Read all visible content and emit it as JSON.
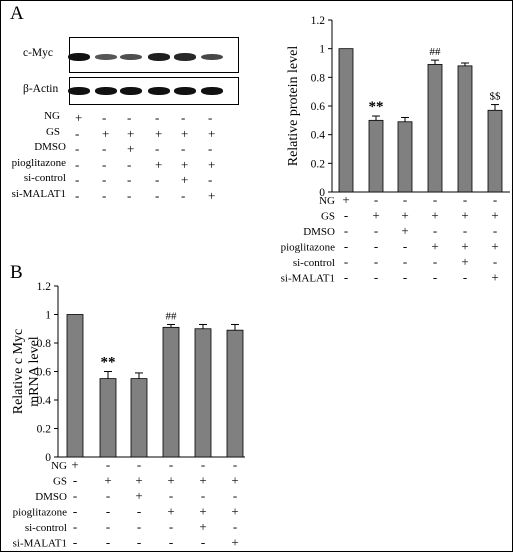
{
  "panels": {
    "A": {
      "letter": "A",
      "blot": {
        "rows": [
          {
            "label": "c-Myc",
            "band_intensity": [
              1.0,
              0.55,
              0.6,
              0.9,
              0.85,
              0.65
            ]
          },
          {
            "label": "β-Actin",
            "band_intensity": [
              1.0,
              1.0,
              1.0,
              1.0,
              1.0,
              1.0
            ]
          }
        ]
      },
      "conditions": [
        {
          "label": "NG",
          "values": [
            "+",
            "-",
            "-",
            "-",
            "-",
            "-"
          ]
        },
        {
          "label": "GS",
          "values": [
            "-",
            "+",
            "+",
            "+",
            "+",
            "+"
          ]
        },
        {
          "label": "DMSO",
          "values": [
            "-",
            "-",
            "+",
            "-",
            "-",
            "-"
          ]
        },
        {
          "label": "pioglitazone",
          "values": [
            "-",
            "-",
            "-",
            "+",
            "+",
            "+"
          ]
        },
        {
          "label": "si-control",
          "values": [
            "-",
            "-",
            "-",
            "-",
            "+",
            "-"
          ]
        },
        {
          "label": "si-MALAT1",
          "values": [
            "-",
            "-",
            "-",
            "-",
            "-",
            "+"
          ]
        }
      ]
    },
    "B": {
      "letter": "B"
    }
  },
  "chart_data": [
    {
      "type": "bar",
      "panel": "A",
      "categories": [
        "1",
        "2",
        "3",
        "4",
        "5",
        "6"
      ],
      "values": [
        1.0,
        0.5,
        0.49,
        0.89,
        0.88,
        0.57
      ],
      "errors": [
        0,
        0.03,
        0.03,
        0.03,
        0.02,
        0.04
      ],
      "annotations": [
        "",
        "**",
        "",
        "##",
        "",
        "$$"
      ],
      "ylabel": "Relative protein level",
      "xlabel": "",
      "ylim": [
        0,
        1.2
      ],
      "yticks": [
        0,
        0.2,
        0.4,
        0.6,
        0.8,
        1,
        1.2
      ],
      "bar_color": "#808080",
      "conditions": [
        {
          "label": "NG",
          "values": [
            "+",
            "-",
            "-",
            "-",
            "-",
            "-"
          ]
        },
        {
          "label": "GS",
          "values": [
            "-",
            "+",
            "+",
            "+",
            "+",
            "+"
          ]
        },
        {
          "label": "DMSO",
          "values": [
            "-",
            "-",
            "+",
            "-",
            "-",
            "-"
          ]
        },
        {
          "label": "pioglitazone",
          "values": [
            "-",
            "-",
            "-",
            "+",
            "+",
            "+"
          ]
        },
        {
          "label": "si-control",
          "values": [
            "-",
            "-",
            "-",
            "-",
            "+",
            "-"
          ]
        },
        {
          "label": "si-MALAT1",
          "values": [
            "-",
            "-",
            "-",
            "-",
            "-",
            "+"
          ]
        }
      ]
    },
    {
      "type": "bar",
      "panel": "B",
      "categories": [
        "1",
        "2",
        "3",
        "4",
        "5",
        "6"
      ],
      "values": [
        1.0,
        0.55,
        0.55,
        0.91,
        0.9,
        0.89
      ],
      "errors": [
        0,
        0.05,
        0.04,
        0.02,
        0.03,
        0.04
      ],
      "annotations": [
        "",
        "**",
        "",
        "##",
        "",
        ""
      ],
      "ylabel": "Relative c Myc mRNA level",
      "ylabel_lines": [
        "Relative c Myc",
        "mRNA level"
      ],
      "xlabel": "",
      "ylim": [
        0,
        1.2
      ],
      "yticks": [
        0,
        0.2,
        0.4,
        0.6,
        0.8,
        1,
        1.2
      ],
      "bar_color": "#808080",
      "conditions": [
        {
          "label": "NG",
          "values": [
            "+",
            "-",
            "-",
            "-",
            "-",
            "-"
          ]
        },
        {
          "label": "GS",
          "values": [
            "-",
            "+",
            "+",
            "+",
            "+",
            "+"
          ]
        },
        {
          "label": "DMSO",
          "values": [
            "-",
            "-",
            "+",
            "-",
            "-",
            "-"
          ]
        },
        {
          "label": "pioglitazone",
          "values": [
            "-",
            "-",
            "-",
            "+",
            "+",
            "+"
          ]
        },
        {
          "label": "si-control",
          "values": [
            "-",
            "-",
            "-",
            "-",
            "+",
            "-"
          ]
        },
        {
          "label": "si-MALAT1",
          "values": [
            "-",
            "-",
            "-",
            "-",
            "-",
            "+"
          ]
        }
      ]
    }
  ]
}
